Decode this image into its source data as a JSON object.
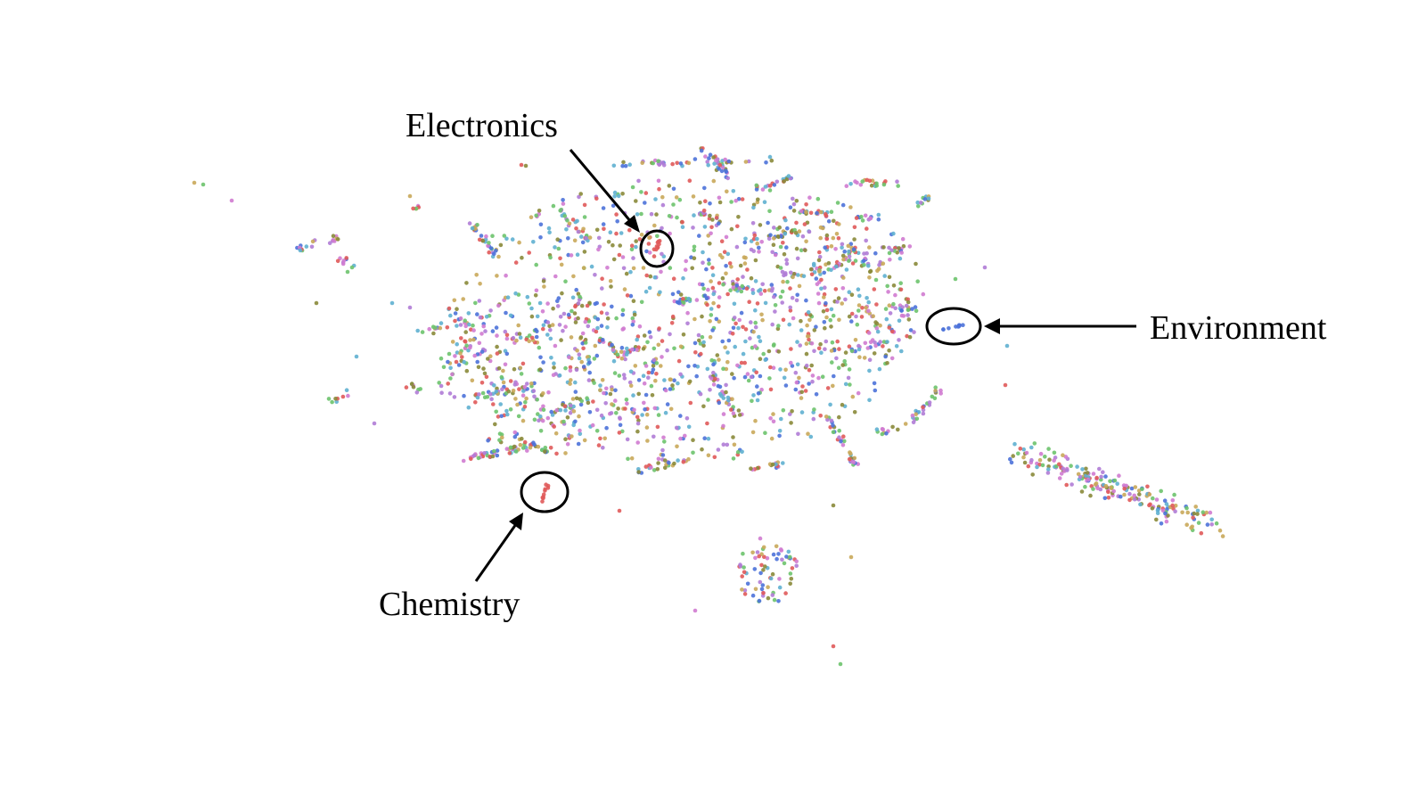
{
  "chart_data": {
    "type": "scatter",
    "title": "",
    "xlabel": "",
    "ylabel": "",
    "grid": false,
    "legend": "none",
    "palette": [
      "#4c72d9",
      "#e05a5a",
      "#b07cd6",
      "#6dc36d",
      "#c9a85a",
      "#5fb0d0",
      "#8a8a3a",
      "#d07bd0"
    ],
    "annotations": [
      {
        "label": "Electronics"
      },
      {
        "label": "Environment"
      },
      {
        "label": "Chemistry"
      }
    ]
  }
}
